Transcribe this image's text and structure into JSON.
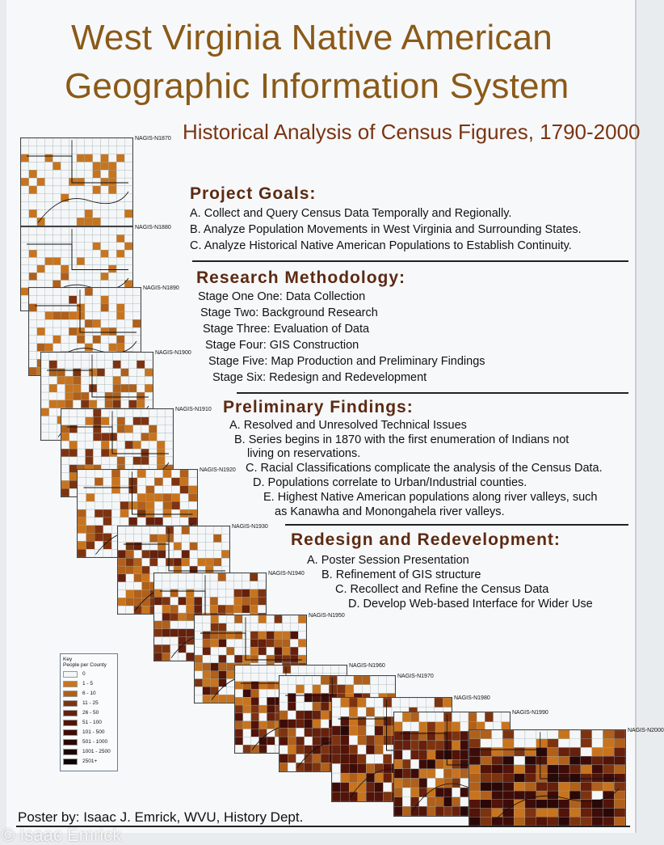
{
  "title": {
    "line1": "West Virginia Native American",
    "line2": "Geographic Information System",
    "subtitle": "Historical Analysis of Census Figures, 1790-2000"
  },
  "goals": {
    "heading": "Project Goals:",
    "items": [
      "A. Collect and Query Census Data Temporally and Regionally.",
      "B. Analyze Population Movements in West Virginia and Surrounding States.",
      "C. Analyze Historical Native American Populations to Establish Continuity."
    ]
  },
  "methodology": {
    "heading": "Research Methodology:",
    "items": [
      "Stage One One: Data Collection",
      "Stage Two: Background Research",
      "Stage Three: Evaluation of Data",
      "Stage Four: GIS Construction",
      "Stage Five: Map Production and Preliminary Findings",
      "Stage Six: Redesign and Redevelopment"
    ]
  },
  "findings": {
    "heading": "Preliminary Findings:",
    "items": [
      "A. Resolved and Unresolved Technical Issues",
      "B. Series begins in 1870 with the first enumeration of Indians not",
      "living on reservations.",
      "C. Racial Classifications complicate the analysis of the Census Data.",
      "D. Populations correlate to Urban/Industrial counties.",
      "E. Highest Native American populations along river valleys, such",
      "as Kanawha and Monongahela river valleys."
    ]
  },
  "redesign": {
    "heading": "Redesign and Redevelopment:",
    "items": [
      "A. Poster Session Presentation",
      "B. Refinement of GIS structure",
      "C. Recollect and Refine the Census Data",
      "D. Develop Web-based Interface for Wider Use"
    ]
  },
  "maps": [
    "NAGIS-N1870",
    "NAGIS-N1880",
    "NAGIS-N1890",
    "NAGIS-N1900",
    "NAGIS-N1910",
    "NAGIS-N1920",
    "NAGIS-N1930",
    "NAGIS-N1940",
    "NAGIS-N1950",
    "NAGIS-N1960",
    "NAGIS-N1970",
    "NAGIS-N1980",
    "NAGIS-N1990",
    "NAGIS-N2000"
  ],
  "key": {
    "title": "Key",
    "subtitle": "People per County",
    "classes": [
      {
        "label": "0",
        "color": "#f4f6f8"
      },
      {
        "label": "1 - 5",
        "color": "#c8741e"
      },
      {
        "label": "6 - 10",
        "color": "#b0601a"
      },
      {
        "label": "11 - 25",
        "color": "#7e3310"
      },
      {
        "label": "26 - 50",
        "color": "#66200c"
      },
      {
        "label": "51 - 100",
        "color": "#521308"
      },
      {
        "label": "101 - 500",
        "color": "#3e0c08"
      },
      {
        "label": "501 - 1000",
        "color": "#2a0808"
      },
      {
        "label": "1001 - 2500",
        "color": "#1c0606"
      },
      {
        "label": "2501+",
        "color": "#0c0404"
      }
    ]
  },
  "footer": "Poster by: Isaac J. Emrick, WVU, History Dept.",
  "watermark": "© Isaac Emrick"
}
